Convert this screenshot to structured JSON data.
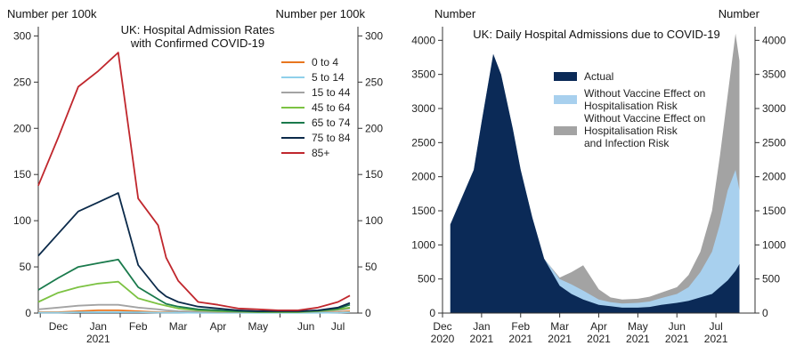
{
  "chart_data": [
    {
      "type": "line",
      "title": "UK: Hospital Admission Rates with Confirmed COVID-19",
      "title_lines": [
        "UK: Hospital Admission Rates",
        "with Confirmed COVID-19"
      ],
      "ylabel_left": "Number per 100k",
      "ylabel_right": "Number per 100k",
      "ylim": [
        0,
        310
      ],
      "yticks": [
        0,
        50,
        100,
        150,
        200,
        250,
        300
      ],
      "xlim": [
        0,
        8.0
      ],
      "xticks": [
        {
          "pos": 0.5,
          "label": "Dec",
          "sub": ""
        },
        {
          "pos": 1.5,
          "label": "Jan",
          "sub": "2021"
        },
        {
          "pos": 2.5,
          "label": "Feb",
          "sub": ""
        },
        {
          "pos": 3.5,
          "label": "Mar",
          "sub": ""
        },
        {
          "pos": 4.5,
          "label": "Apr",
          "sub": ""
        },
        {
          "pos": 5.5,
          "label": "May",
          "sub": ""
        },
        {
          "pos": 6.7,
          "label": "Jun",
          "sub": ""
        },
        {
          "pos": 7.5,
          "label": "Jul",
          "sub": ""
        }
      ],
      "x": [
        0,
        0.5,
        1.0,
        1.5,
        2.0,
        2.5,
        3.0,
        3.2,
        3.5,
        4.0,
        4.5,
        5.0,
        5.5,
        6.0,
        6.5,
        7.0,
        7.5,
        7.8
      ],
      "series": [
        {
          "name": "0 to 4",
          "color": "#e8761f",
          "values": [
            1,
            1,
            2,
            3,
            3,
            2,
            1,
            1,
            1,
            0.5,
            0.5,
            0.5,
            0.5,
            0.5,
            0.5,
            0.5,
            1,
            2
          ]
        },
        {
          "name": "5 to 14",
          "color": "#8fd0ea",
          "values": [
            0.5,
            0.5,
            1,
            1,
            1,
            1,
            0.5,
            0.5,
            0.5,
            0.3,
            0.3,
            0.3,
            0.3,
            0.3,
            0.3,
            0.3,
            0.5,
            1
          ]
        },
        {
          "name": "15 to 44",
          "color": "#a3a3a3",
          "values": [
            4,
            6,
            8,
            9,
            9,
            6,
            4,
            3,
            2,
            1.5,
            1,
            1,
            1,
            1,
            1,
            1.5,
            3,
            5
          ]
        },
        {
          "name": "45 to 64",
          "color": "#7cc242",
          "values": [
            12,
            22,
            28,
            32,
            34,
            16,
            10,
            8,
            5,
            3,
            2,
            1.5,
            1,
            1,
            1,
            2,
            4,
            6
          ]
        },
        {
          "name": "65 to 74",
          "color": "#1a7a4c",
          "values": [
            25,
            38,
            50,
            54,
            58,
            28,
            15,
            10,
            7,
            4,
            3,
            2,
            1.5,
            1.5,
            1.5,
            2.5,
            5,
            9
          ]
        },
        {
          "name": "75 to 84",
          "color": "#0b2a4a",
          "values": [
            62,
            86,
            110,
            120,
            130,
            52,
            25,
            18,
            12,
            7,
            5,
            3,
            2,
            2,
            2,
            3,
            6,
            11
          ]
        },
        {
          "name": "85+",
          "color": "#c0272d",
          "values": [
            138,
            190,
            245,
            262,
            282,
            124,
            95,
            60,
            35,
            12,
            9,
            5,
            4,
            3,
            3,
            6,
            12,
            19
          ]
        }
      ]
    },
    {
      "type": "area",
      "title": "UK: Daily Hospital Admissions due to COVID-19",
      "ylabel_left": "Number",
      "ylabel_right": "Number",
      "ylim": [
        0,
        4200
      ],
      "yticks": [
        0,
        500,
        1000,
        1500,
        2000,
        2500,
        3000,
        3500,
        4000
      ],
      "xlim": [
        0,
        8.0
      ],
      "xticks": [
        {
          "pos": 0,
          "label": "Dec",
          "sub": "2020"
        },
        {
          "pos": 1,
          "label": "Jan",
          "sub": "2021"
        },
        {
          "pos": 2,
          "label": "Feb",
          "sub": "2021"
        },
        {
          "pos": 3,
          "label": "Mar",
          "sub": "2021"
        },
        {
          "pos": 4,
          "label": "Apr",
          "sub": "2021"
        },
        {
          "pos": 5,
          "label": "May",
          "sub": "2021"
        },
        {
          "pos": 6,
          "label": "Jun",
          "sub": "2021"
        },
        {
          "pos": 7,
          "label": "Jul",
          "sub": "2021"
        }
      ],
      "x": [
        0.2,
        0.5,
        0.8,
        1.0,
        1.3,
        1.5,
        1.8,
        2.0,
        2.3,
        2.6,
        3.0,
        3.3,
        3.6,
        4.0,
        4.3,
        4.6,
        5.0,
        5.3,
        5.6,
        6.0,
        6.3,
        6.6,
        6.9,
        7.1,
        7.3,
        7.5,
        7.6
      ],
      "series": [
        {
          "name": "Actual",
          "color": "#0b2a57",
          "values": [
            1300,
            1700,
            2100,
            2800,
            3800,
            3500,
            2700,
            2100,
            1400,
            800,
            400,
            280,
            200,
            120,
            100,
            80,
            80,
            90,
            120,
            150,
            180,
            230,
            280,
            380,
            480,
            620,
            720
          ]
        },
        {
          "name": "Without Vaccine Effect on Hospitalisation Risk",
          "color": "#a8d0ee",
          "values": [
            1300,
            1700,
            2100,
            2800,
            3800,
            3500,
            2700,
            2100,
            1400,
            800,
            500,
            420,
            330,
            200,
            160,
            140,
            150,
            170,
            220,
            280,
            380,
            600,
            900,
            1300,
            1800,
            2100,
            1800
          ]
        },
        {
          "name": "Without Vaccine Effect on Hospitalisation Risk and Infection Risk",
          "color": "#a3a3a3",
          "values": [
            1300,
            1700,
            2100,
            2800,
            3800,
            3500,
            2700,
            2100,
            1400,
            800,
            520,
            600,
            700,
            350,
            230,
            200,
            210,
            240,
            300,
            380,
            560,
            900,
            1500,
            2300,
            3200,
            4100,
            3700
          ]
        }
      ]
    }
  ]
}
